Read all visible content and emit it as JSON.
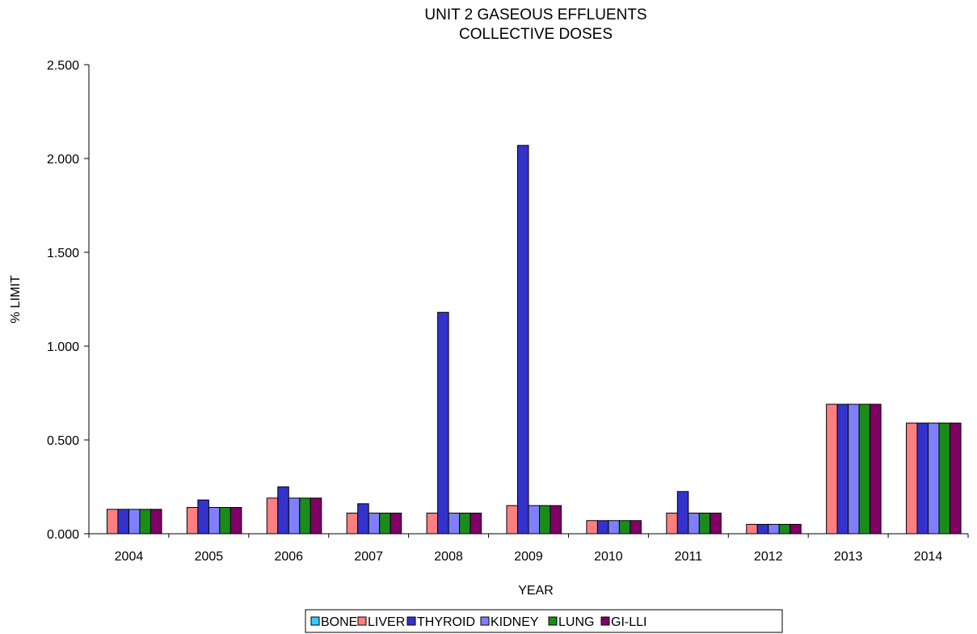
{
  "chart_data": {
    "type": "bar",
    "title": [
      "UNIT 2 GASEOUS EFFLUENTS",
      "COLLECTIVE DOSES"
    ],
    "xlabel": "YEAR",
    "ylabel": "% LIMIT",
    "ylim": [
      0,
      2.5
    ],
    "yticks": [
      "0.000",
      "0.500",
      "1.000",
      "1.500",
      "2.000",
      "2.500"
    ],
    "yticks_values": [
      0,
      0.5,
      1.0,
      1.5,
      2.0,
      2.5
    ],
    "grid": false,
    "legend_position": "bottom",
    "categories": [
      "2004",
      "2005",
      "2006",
      "2007",
      "2008",
      "2009",
      "2010",
      "2011",
      "2012",
      "2013",
      "2014"
    ],
    "series": [
      {
        "name": "BONE",
        "color": "#33ccff",
        "values": [
          0,
          0,
          0,
          0,
          0,
          0,
          0,
          0,
          0,
          0,
          0
        ]
      },
      {
        "name": "LIVER",
        "color": "#ff7f7f",
        "values": [
          0.13,
          0.14,
          0.19,
          0.11,
          0.11,
          0.15,
          0.07,
          0.11,
          0.05,
          0.69,
          0.59
        ]
      },
      {
        "name": "THYROID",
        "color": "#3333cc",
        "values": [
          0.13,
          0.18,
          0.25,
          0.16,
          1.18,
          2.07,
          0.07,
          0.225,
          0.05,
          0.69,
          0.59
        ]
      },
      {
        "name": "KIDNEY",
        "color": "#7f7fff",
        "values": [
          0.13,
          0.14,
          0.19,
          0.11,
          0.11,
          0.15,
          0.07,
          0.11,
          0.05,
          0.69,
          0.59
        ]
      },
      {
        "name": "LUNG",
        "color": "#1a8c1a",
        "values": [
          0.13,
          0.14,
          0.19,
          0.11,
          0.11,
          0.15,
          0.07,
          0.11,
          0.05,
          0.69,
          0.59
        ]
      },
      {
        "name": "GI-LLI",
        "color": "#800066",
        "values": [
          0.13,
          0.14,
          0.19,
          0.11,
          0.11,
          0.15,
          0.07,
          0.11,
          0.05,
          0.69,
          0.59
        ]
      }
    ]
  }
}
